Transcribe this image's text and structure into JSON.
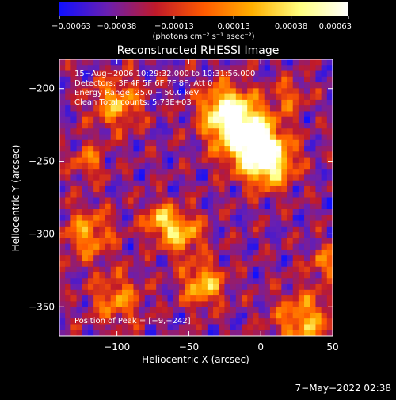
{
  "chart_data": {
    "type": "heatmap",
    "title": "Reconstructed RHESSI Image",
    "xlabel": "Heliocentric X (arcsec)",
    "ylabel": "Heliocentric Y (arcsec)",
    "xlim": [
      -140,
      50
    ],
    "ylim": [
      -370,
      -180
    ],
    "x_ticks": [
      -100,
      -50,
      0,
      50
    ],
    "y_ticks": [
      -200,
      -250,
      -300,
      -350
    ],
    "tick_labels_x": [
      "−100",
      "−50",
      "0",
      "50"
    ],
    "tick_labels_y": [
      "−200",
      "−250",
      "−300",
      "−350"
    ],
    "colorbar": {
      "range": [
        -0.00063,
        0.00063
      ],
      "ticks": [
        -0.00063,
        -0.00038,
        -0.00013,
        0.00013,
        0.00038,
        0.00063
      ],
      "tick_labels": [
        "−0.00063",
        "−0.00038",
        "−0.00013",
        "0.00013",
        "0.00038",
        "0.00063"
      ],
      "unit_label": "(photons cm⁻² s⁻¹ asec⁻²)",
      "colors": [
        "#1010ff",
        "#6a1fb0",
        "#c01a2a",
        "#ff5a00",
        "#ffb000",
        "#ffff80",
        "#ffffff"
      ]
    },
    "info_lines": [
      "15−Aug−2006 10:29:32.000 to 10:31:56.000",
      "Detectors: 3F 4F 5F 6F 7F 8F, Att 0",
      "Energy Range: 25.0 − 50.0 keV",
      "Clean     Total counts: 5.73E+03"
    ],
    "peak_text": "Position of Peak = [−9,−242]",
    "peak": {
      "x": -9,
      "y": -242
    },
    "sources": [
      {
        "x": -10,
        "y": -232,
        "r": 14,
        "amp": 1.0
      },
      {
        "x": 5,
        "y": -250,
        "r": 12,
        "amp": 0.95
      },
      {
        "x": -25,
        "y": -215,
        "r": 12,
        "amp": 0.8
      },
      {
        "x": -55,
        "y": -300,
        "r": 10,
        "amp": 0.6
      },
      {
        "x": -70,
        "y": -290,
        "r": 8,
        "amp": 0.55
      },
      {
        "x": -40,
        "y": -335,
        "r": 10,
        "amp": 0.65
      },
      {
        "x": -100,
        "y": -210,
        "r": 12,
        "amp": 0.55
      },
      {
        "x": -120,
        "y": -300,
        "r": 12,
        "amp": 0.5
      },
      {
        "x": 30,
        "y": -360,
        "r": 14,
        "amp": 0.55
      },
      {
        "x": 45,
        "y": -320,
        "r": 8,
        "amp": 0.4
      },
      {
        "x": -100,
        "y": -345,
        "r": 12,
        "amp": 0.45
      },
      {
        "x": -120,
        "y": -250,
        "r": 8,
        "amp": 0.4
      },
      {
        "x": 20,
        "y": -205,
        "r": 8,
        "amp": 0.35
      }
    ],
    "timestamp": "7−May−2022 02:38"
  }
}
